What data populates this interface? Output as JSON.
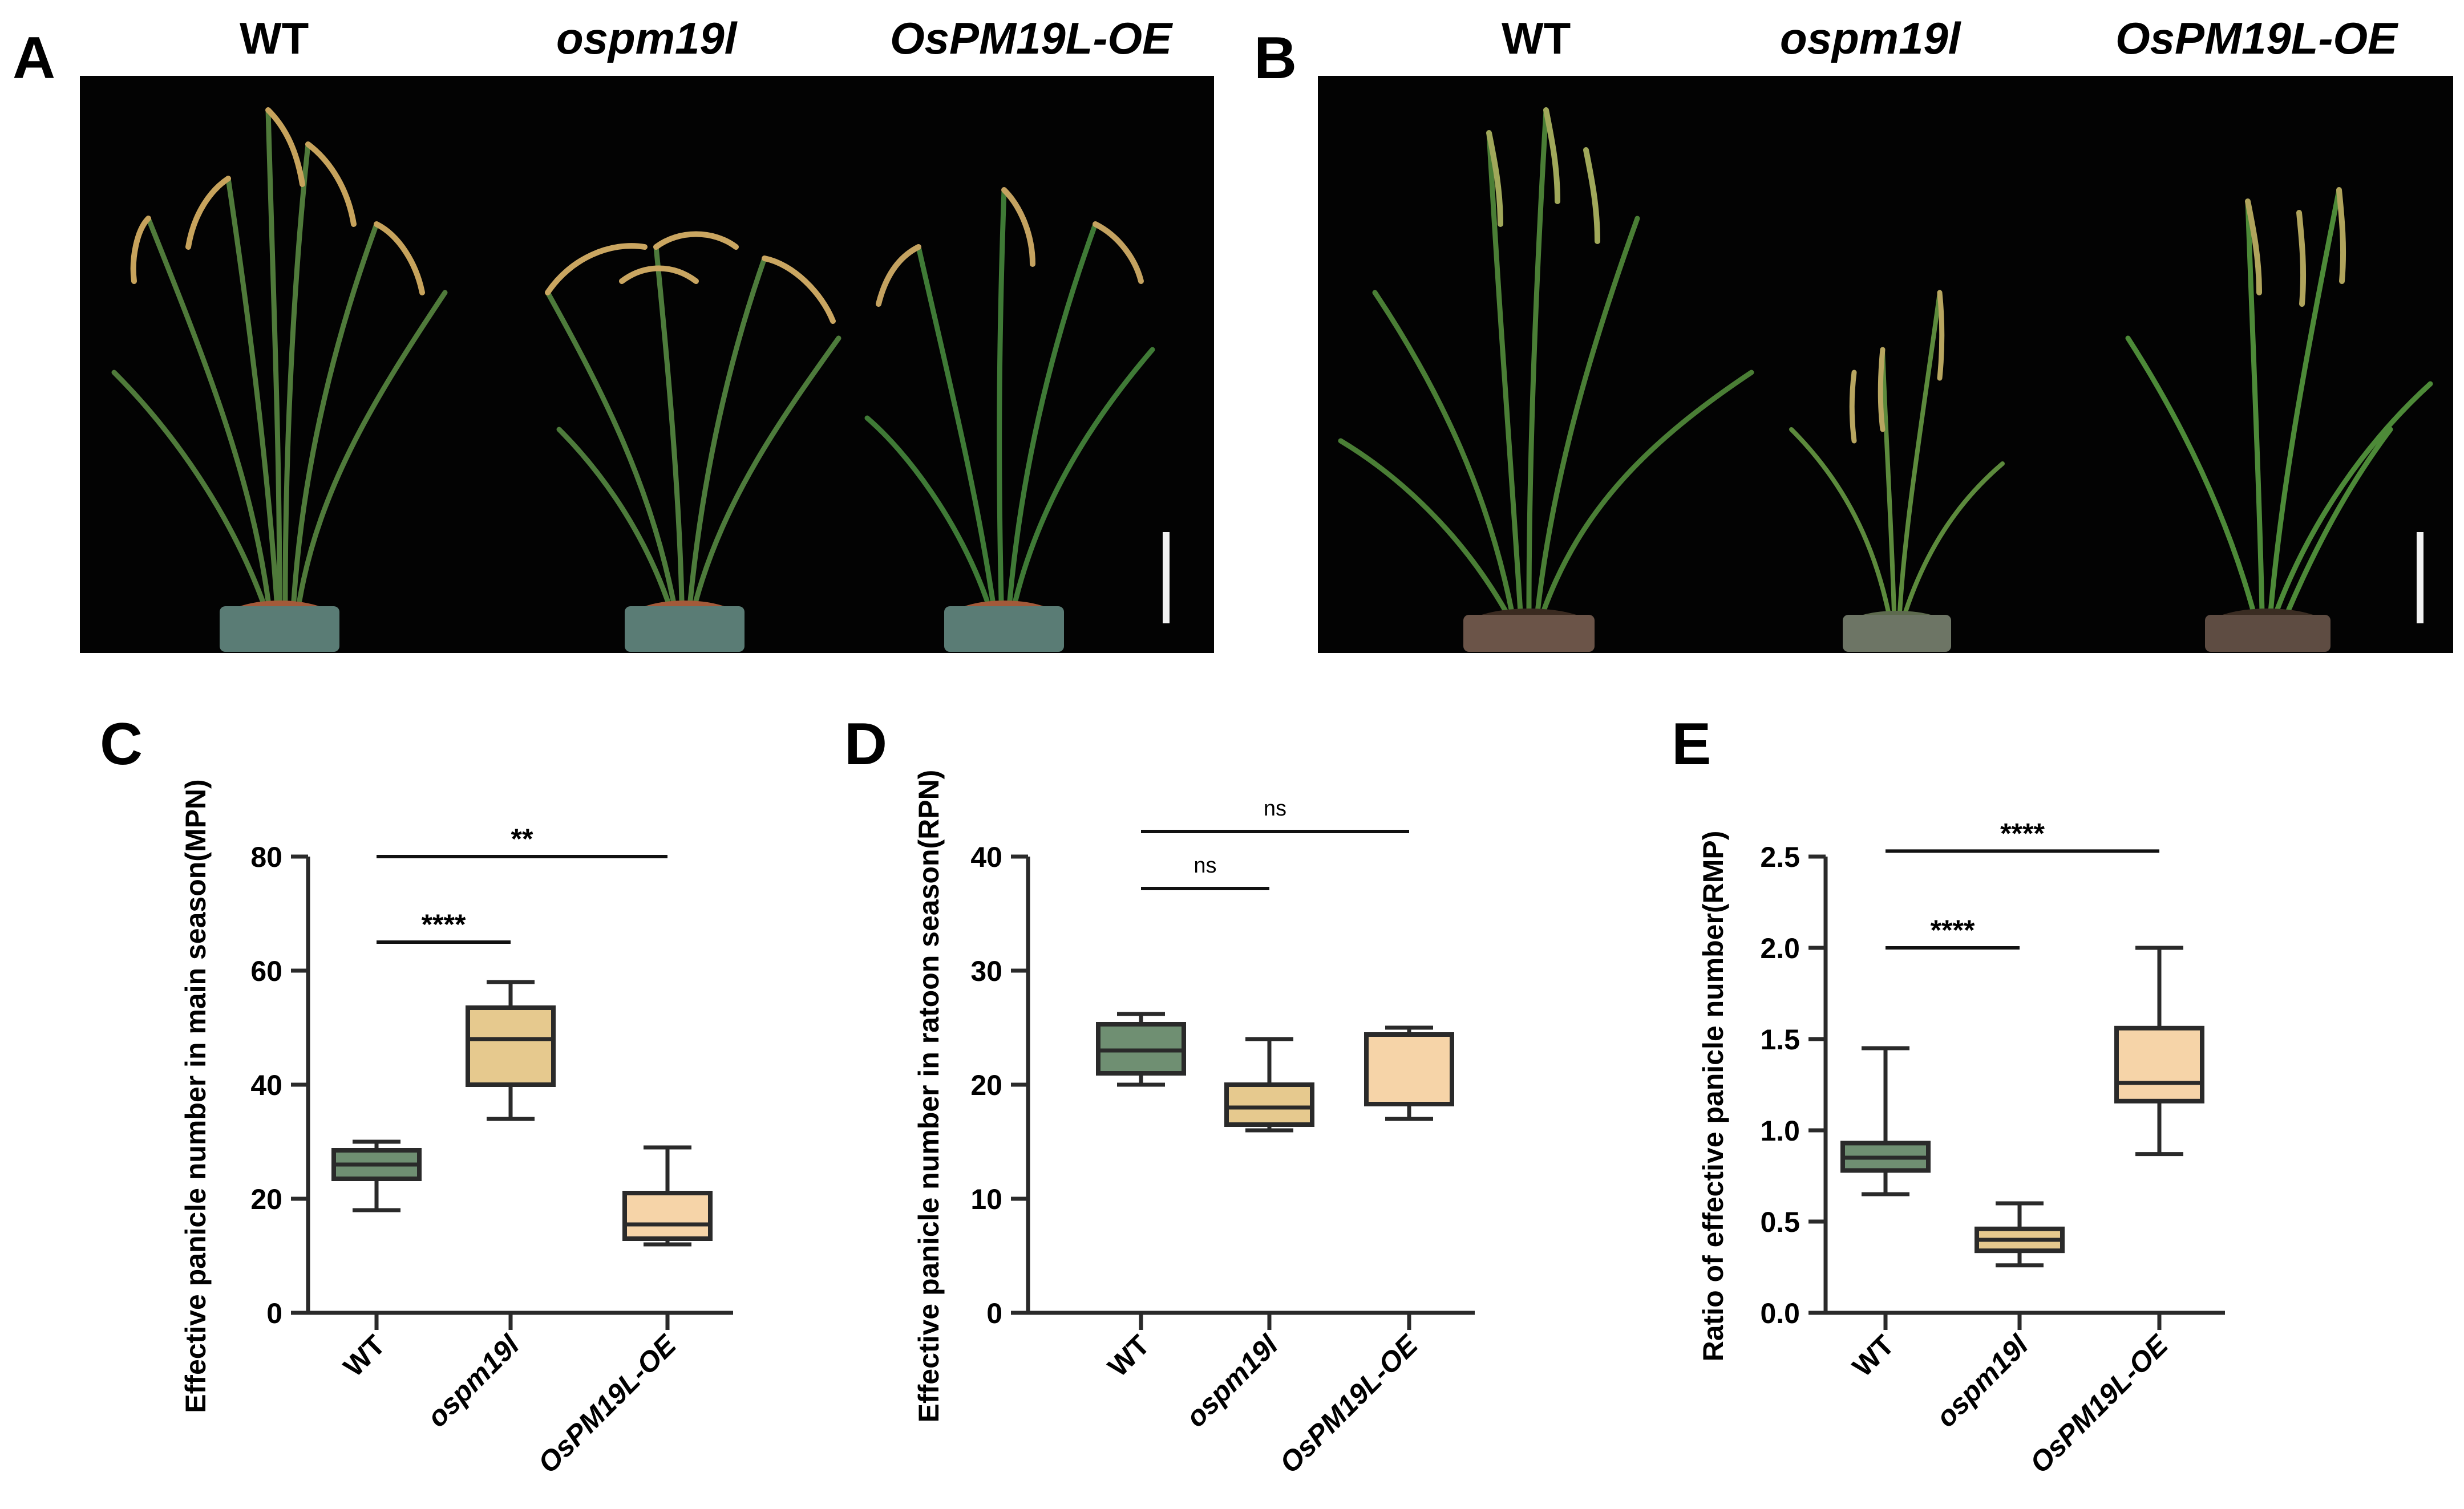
{
  "panels": {
    "A": {
      "letter": "A",
      "genotypes": [
        {
          "label": "WT",
          "italic": false
        },
        {
          "label": "ospm19l",
          "italic": true
        },
        {
          "label": "OsPM19L-OE",
          "italic": true
        }
      ]
    },
    "B": {
      "letter": "B",
      "genotypes": [
        {
          "label": "WT",
          "italic": false
        },
        {
          "label": "ospm19l",
          "italic": true
        },
        {
          "label": "OsPM19L-OE",
          "italic": true
        }
      ]
    }
  },
  "colors": {
    "wt_box": "#6f8f72",
    "mutant_box": "#e6c98e",
    "oe_box": "#f6d4a8",
    "line": "#2a2a2a"
  },
  "chart_data": [
    {
      "id": "C",
      "letter": "C",
      "type": "box",
      "categories": [
        "WT",
        "ospm19l",
        "OsPM19L-OE"
      ],
      "italic_categories": [
        false,
        true,
        true
      ],
      "ylabel": "Effective panicle number in main season(MPN)",
      "ylim": [
        0,
        80
      ],
      "yticks": [
        0,
        20,
        40,
        60,
        80
      ],
      "tick_labels": [
        "0",
        "20",
        "40",
        "60",
        "80"
      ],
      "boxes": [
        {
          "name": "WT",
          "min": 18,
          "q1": 23.5,
          "median": 26,
          "q3": 28.5,
          "max": 30,
          "color": "#6f8f72"
        },
        {
          "name": "ospm19l",
          "min": 34,
          "q1": 40,
          "median": 48,
          "q3": 53.5,
          "max": 58,
          "color": "#e6c98e"
        },
        {
          "name": "OsPM19L-OE",
          "min": 12,
          "q1": 13,
          "median": 15.5,
          "q3": 21,
          "max": 29,
          "color": "#f6d4a8"
        }
      ],
      "significance": [
        {
          "from": 0,
          "to": 1,
          "y": 65,
          "label": "****"
        },
        {
          "from": 0,
          "to": 2,
          "y": 80,
          "label": "**"
        }
      ]
    },
    {
      "id": "D",
      "letter": "D",
      "type": "box",
      "categories": [
        "WT",
        "ospm19l",
        "OsPM19L-OE"
      ],
      "italic_categories": [
        false,
        true,
        true
      ],
      "ylabel": "Effective panicle number in ratoon season(RPN)",
      "ylim": [
        0,
        40
      ],
      "yticks": [
        0,
        10,
        20,
        30,
        40
      ],
      "tick_labels": [
        "0",
        "10",
        "20",
        "30",
        "40"
      ],
      "boxes": [
        {
          "name": "WT",
          "min": 20,
          "q1": 21,
          "median": 23,
          "q3": 25.3,
          "max": 26.2,
          "color": "#6f8f72"
        },
        {
          "name": "ospm19l",
          "min": 16,
          "q1": 16.5,
          "median": 18,
          "q3": 20,
          "max": 24,
          "color": "#e6c98e"
        },
        {
          "name": "OsPM19L-OE",
          "min": 17,
          "q1": 18.3,
          "median": 18.3,
          "q3": 24.4,
          "max": 25,
          "color": "#f6d4a8"
        }
      ],
      "significance": [
        {
          "from": 0,
          "to": 1,
          "y": 37.2,
          "label": "ns"
        },
        {
          "from": 0,
          "to": 2,
          "y": 42.2,
          "label": "ns"
        }
      ]
    },
    {
      "id": "E",
      "letter": "E",
      "type": "box",
      "categories": [
        "WT",
        "ospm19l",
        "OsPM19L-OE"
      ],
      "italic_categories": [
        false,
        true,
        true
      ],
      "ylabel": "Ratio of effective panicle number(RMP)",
      "ylim": [
        0,
        2.5
      ],
      "yticks": [
        0,
        0.5,
        1.0,
        1.5,
        2.0,
        2.5
      ],
      "tick_labels": [
        "0.0",
        "0.5",
        "1.0",
        "1.5",
        "2.0",
        "2.5"
      ],
      "boxes": [
        {
          "name": "WT",
          "min": 0.65,
          "q1": 0.78,
          "median": 0.85,
          "q3": 0.93,
          "max": 1.45,
          "color": "#6f8f72"
        },
        {
          "name": "ospm19l",
          "min": 0.26,
          "q1": 0.34,
          "median": 0.4,
          "q3": 0.46,
          "max": 0.6,
          "color": "#e6c98e"
        },
        {
          "name": "OsPM19L-OE",
          "min": 0.87,
          "q1": 1.16,
          "median": 1.26,
          "q3": 1.56,
          "max": 2.0,
          "color": "#f6d4a8"
        }
      ],
      "significance": [
        {
          "from": 0,
          "to": 1,
          "y": 2.0,
          "label": "****"
        },
        {
          "from": 0,
          "to": 2,
          "y": 2.53,
          "label": "****"
        }
      ]
    }
  ]
}
